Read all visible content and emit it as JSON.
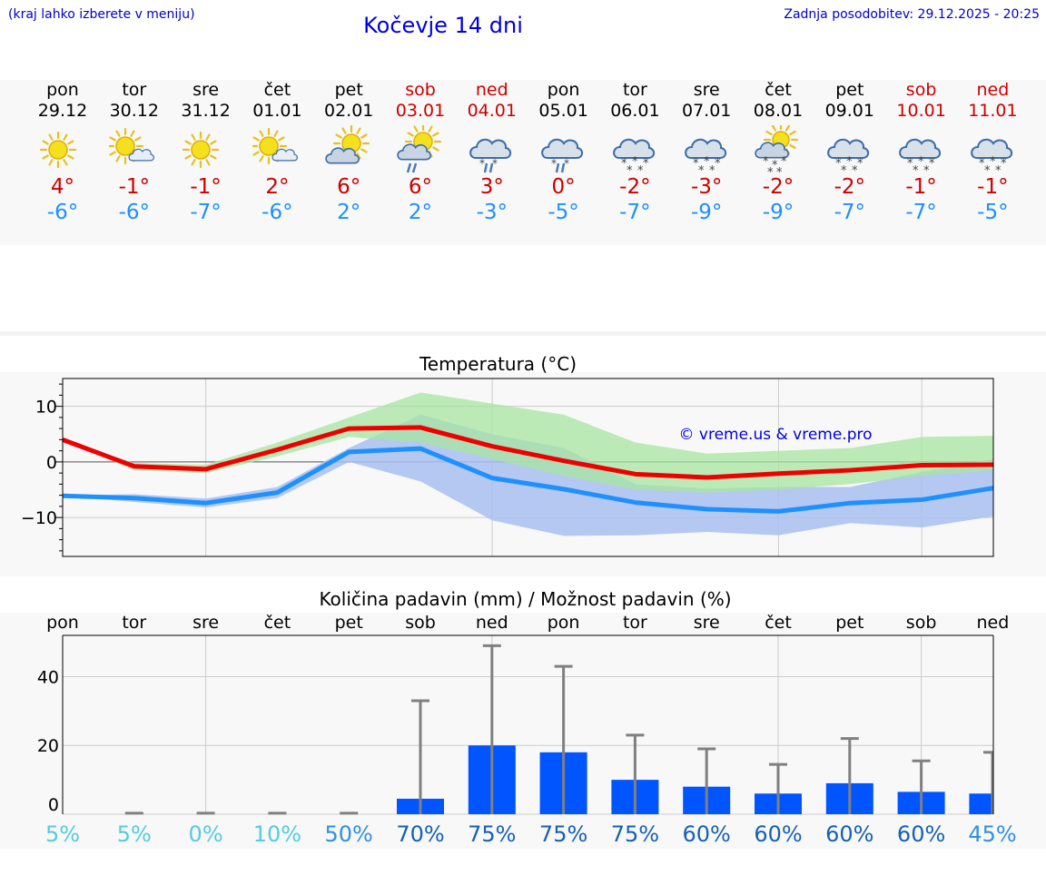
{
  "header": {
    "hint": "(kraj lahko izberete v meniju)",
    "title": "Kočevje 14 dni",
    "updated": "Zadnja posodobitev: 29.12.2025 - 20:25"
  },
  "days": [
    {
      "name": "pon",
      "date": "29.12",
      "weekend": false,
      "icon": "sun-icon",
      "tmax": "4°",
      "tmin": "-6°"
    },
    {
      "name": "tor",
      "date": "30.12",
      "weekend": false,
      "icon": "sun-cloud-icon",
      "tmax": "-1°",
      "tmin": "-6°"
    },
    {
      "name": "sre",
      "date": "31.12",
      "weekend": false,
      "icon": "sun-icon",
      "tmax": "-1°",
      "tmin": "-7°"
    },
    {
      "name": "čet",
      "date": "01.01",
      "weekend": false,
      "icon": "sun-cloud-icon",
      "tmax": "2°",
      "tmin": "-6°"
    },
    {
      "name": "pet",
      "date": "02.01",
      "weekend": false,
      "icon": "cloud-sun-icon",
      "tmax": "6°",
      "tmin": "2°"
    },
    {
      "name": "sob",
      "date": "03.01",
      "weekend": true,
      "icon": "sun-rain-icon",
      "tmax": "6°",
      "tmin": "2°"
    },
    {
      "name": "ned",
      "date": "04.01",
      "weekend": true,
      "icon": "cloud-sleet-icon",
      "tmax": "3°",
      "tmin": "-3°"
    },
    {
      "name": "pon",
      "date": "05.01",
      "weekend": false,
      "icon": "cloud-sleet-icon",
      "tmax": "0°",
      "tmin": "-5°"
    },
    {
      "name": "tor",
      "date": "06.01",
      "weekend": false,
      "icon": "cloud-snow-icon",
      "tmax": "-2°",
      "tmin": "-7°"
    },
    {
      "name": "sre",
      "date": "07.01",
      "weekend": false,
      "icon": "cloud-snow-icon",
      "tmax": "-3°",
      "tmin": "-9°"
    },
    {
      "name": "čet",
      "date": "08.01",
      "weekend": false,
      "icon": "sun-snow-icon",
      "tmax": "-2°",
      "tmin": "-9°"
    },
    {
      "name": "pet",
      "date": "09.01",
      "weekend": false,
      "icon": "cloud-snow-icon",
      "tmax": "-2°",
      "tmin": "-7°"
    },
    {
      "name": "sob",
      "date": "10.01",
      "weekend": true,
      "icon": "cloud-snow-icon",
      "tmax": "-1°",
      "tmin": "-7°"
    },
    {
      "name": "ned",
      "date": "11.01",
      "weekend": true,
      "icon": "cloud-snow-icon",
      "tmax": "-1°",
      "tmin": "-5°"
    }
  ],
  "colors": {
    "max_line": "#ee0000",
    "min_line": "#1e90ff",
    "max_band": "#a8e6a0",
    "min_band": "#a8c0f0",
    "bar": "#0055ff",
    "whisker": "#808080"
  },
  "chart_data": [
    {
      "type": "line",
      "title": "Temperatura (°C)",
      "watermark": "© vreme.us & vreme.pro",
      "yticks": [
        10,
        0,
        -10
      ],
      "ytick_labels": [
        "10",
        "0",
        "−10"
      ],
      "ylim": [
        -17,
        15
      ],
      "xlim": [
        0,
        13
      ],
      "x": [
        0,
        1,
        2,
        3,
        4,
        5,
        6,
        7,
        8,
        9,
        10,
        11,
        12,
        13
      ],
      "series": [
        {
          "name": "max",
          "values": [
            4,
            -0.8,
            -1.3,
            2.2,
            6,
            6.2,
            2.8,
            0.2,
            -2.2,
            -2.8,
            -2.1,
            -1.5,
            -0.6,
            -0.5
          ]
        },
        {
          "name": "min",
          "values": [
            -6.1,
            -6.5,
            -7.4,
            -5.5,
            1.8,
            2.4,
            -2.9,
            -4.9,
            -7.3,
            -8.5,
            -8.9,
            -7.4,
            -6.8,
            -4.7
          ]
        }
      ],
      "bands": [
        {
          "name": "max_range",
          "low": [
            4,
            -1.5,
            -2,
            1,
            4.5,
            3.5,
            0.5,
            -2.5,
            -5,
            -5.5,
            -5,
            -4,
            -2.5,
            -1.5
          ],
          "high": [
            4,
            -0.2,
            -0.5,
            3.5,
            8,
            12.5,
            10.5,
            8.5,
            3.5,
            1.5,
            2,
            2.5,
            4.5,
            4.7
          ]
        },
        {
          "name": "min_range",
          "low": [
            -6.1,
            -7.2,
            -8.2,
            -6.5,
            0,
            -3.5,
            -10.5,
            -13.3,
            -13.2,
            -12.6,
            -13.2,
            -11,
            -11.8,
            -9.8
          ],
          "high": [
            -6.1,
            -5.8,
            -6.6,
            -4.5,
            2.5,
            8.5,
            5,
            2.5,
            -4,
            -4.8,
            -4.5,
            -4.5,
            -1.8,
            0.5
          ]
        }
      ]
    },
    {
      "type": "bar",
      "title": "Količina padavin (mm) / Možnost padavin (%)",
      "categories": [
        "pon",
        "tor",
        "sre",
        "čet",
        "pet",
        "sob",
        "ned",
        "pon",
        "tor",
        "sre",
        "čet",
        "pet",
        "sob",
        "ned"
      ],
      "values": [
        0,
        0,
        0,
        0,
        0,
        4.5,
        20,
        18,
        10,
        8,
        6,
        9,
        6.5,
        6
      ],
      "whisker_max": [
        0,
        0.3,
        0.3,
        0.3,
        0.3,
        33,
        49,
        43,
        23,
        19,
        14.5,
        22,
        15.5,
        18
      ],
      "probability": [
        "5%",
        "5%",
        "0%",
        "10%",
        "50%",
        "70%",
        "75%",
        "75%",
        "75%",
        "60%",
        "60%",
        "60%",
        "60%",
        "45%"
      ],
      "probability_values": [
        5,
        5,
        0,
        10,
        50,
        70,
        75,
        75,
        75,
        60,
        60,
        60,
        60,
        45
      ],
      "yticks": [
        40,
        20,
        0
      ],
      "ytick_labels": [
        "40",
        "20",
        "0"
      ],
      "ylim": [
        0,
        52
      ]
    }
  ]
}
